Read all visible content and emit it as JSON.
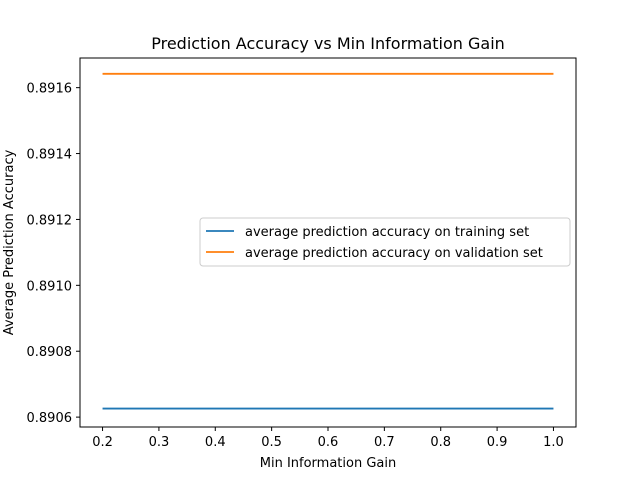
{
  "chart_data": {
    "type": "line",
    "title": "Prediction Accuracy vs Min Information Gain",
    "xlabel": "Min Information Gain",
    "ylabel": "Average Prediction Accuracy",
    "x": [
      0.2,
      0.3,
      0.4,
      0.5,
      0.6,
      0.7,
      0.8,
      0.9,
      1.0
    ],
    "xlim": [
      0.16,
      1.04
    ],
    "ylim": [
      0.89057,
      0.89169
    ],
    "x_ticks": [
      "0.2",
      "0.3",
      "0.4",
      "0.5",
      "0.6",
      "0.7",
      "0.8",
      "0.9",
      "1.0"
    ],
    "y_ticks": [
      "0.8906",
      "0.8908",
      "0.8910",
      "0.8912",
      "0.8914",
      "0.8916"
    ],
    "grid": false,
    "legend_position": "center-right",
    "series": [
      {
        "name": "average prediction accuracy on training set",
        "color": "#1f77b4",
        "values": [
          0.890626,
          0.890626,
          0.890626,
          0.890626,
          0.890626,
          0.890626,
          0.890626,
          0.890626,
          0.890626
        ]
      },
      {
        "name": "average prediction accuracy on validation set",
        "color": "#ff7f0e",
        "values": [
          0.891642,
          0.891642,
          0.891642,
          0.891642,
          0.891642,
          0.891642,
          0.891642,
          0.891642,
          0.891642
        ]
      }
    ]
  }
}
